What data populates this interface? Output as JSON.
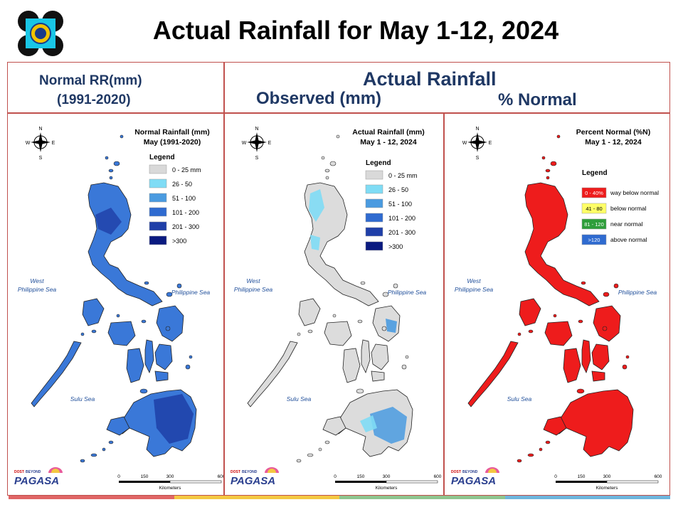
{
  "title": "Actual Rainfall for May 1-12, 2024",
  "headers": {
    "normal_line1": "Normal RR(mm)",
    "normal_line2": "(1991-2020)",
    "actual": "Actual Rainfall",
    "observed": "Observed (mm)",
    "percent": "% Normal"
  },
  "panels": [
    {
      "map_title_line1": "Normal Rainfall (mm)",
      "map_title_line2": "May (1991-2020)",
      "legend_title": "Legend",
      "legend": [
        {
          "label": "0 - 25 mm",
          "color": "#d9d9d9"
        },
        {
          "label": "26 - 50",
          "color": "#7fdcf5"
        },
        {
          "label": "51 - 100",
          "color": "#4a9be0"
        },
        {
          "label": "101 - 200",
          "color": "#2f6bd0"
        },
        {
          "label": "201 - 300",
          "color": "#1f3fa8"
        },
        {
          "label": ">300",
          "color": "#0a1a80"
        }
      ],
      "land_color": "#3a78d8",
      "accent_color": "#1f3fa8"
    },
    {
      "map_title_line1": "Actual Rainfall (mm)",
      "map_title_line2": "May 1 - 12, 2024",
      "legend_title": "Legend",
      "legend": [
        {
          "label": "0 - 25 mm",
          "color": "#d9d9d9"
        },
        {
          "label": "26 - 50",
          "color": "#7fdcf5"
        },
        {
          "label": "51 - 100",
          "color": "#4a9be0"
        },
        {
          "label": "101 - 200",
          "color": "#2f6bd0"
        },
        {
          "label": "201 - 300",
          "color": "#1f3fa8"
        },
        {
          "label": ">300",
          "color": "#0a1a80"
        }
      ],
      "land_color": "#dcdcdc",
      "accent_color": "#7fdcf5"
    },
    {
      "map_title_line1": "Percent Normal (%N)",
      "map_title_line2": "May 1 - 12, 2024",
      "legend_title": "Legend",
      "legend": [
        {
          "label": "way below normal",
          "swatch_label": "0 - 40%",
          "color": "#ee1c1c"
        },
        {
          "label": "below normal",
          "swatch_label": "41 - 80",
          "color": "#ffff66"
        },
        {
          "label": "near normal",
          "swatch_label": "81 - 120",
          "color": "#2e9e3a"
        },
        {
          "label": "above normal",
          "swatch_label": ">120",
          "color": "#2f6bd0"
        }
      ],
      "land_color": "#ee1c1c",
      "accent_color": "#ee1c1c"
    }
  ],
  "map_labels": {
    "west_sea_line1": "West",
    "west_sea_line2": "Philippine Sea",
    "east_sea": "Philippine Sea",
    "sulu_sea": "Sulu Sea"
  },
  "compass": {
    "n": "N",
    "s": "S",
    "e": "E",
    "w": "W"
  },
  "scale": {
    "ticks": [
      "0",
      "150",
      "300",
      "600"
    ],
    "unit": "Kilometers"
  },
  "branding": {
    "agency": "PAGASA",
    "top": "DOST",
    "tag": "BEYOND"
  },
  "footer_colors": [
    "#e06666",
    "#f4c842",
    "#8fc58f",
    "#6fb5dd"
  ]
}
